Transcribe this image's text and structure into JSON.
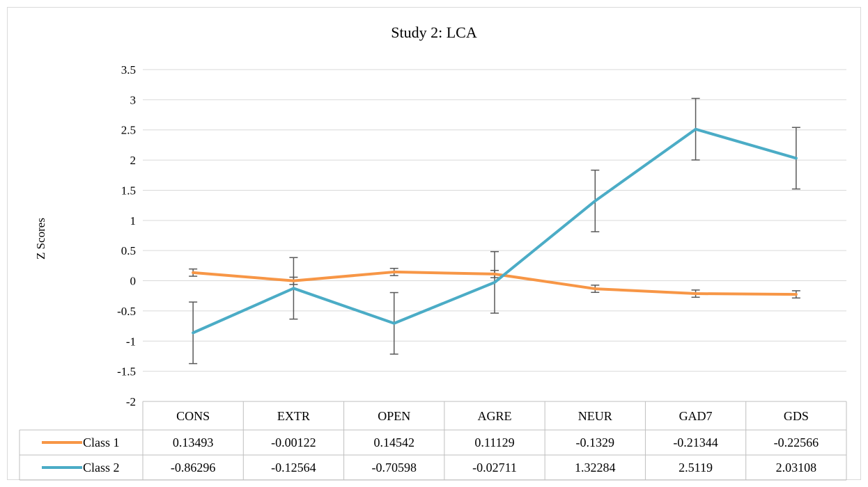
{
  "chart_data": {
    "type": "line",
    "title": "Study 2: LCA",
    "ylabel": "Z Scores",
    "xlabel": "",
    "categories": [
      "CONS",
      "EXTR",
      "OPEN",
      "AGRE",
      "NEUR",
      "GAD7",
      "GDS"
    ],
    "ylim": [
      -2,
      3.5
    ],
    "yticks": [
      "3.5",
      "3",
      "2.5",
      "2",
      "1.5",
      "1",
      "0.5",
      "0",
      "-0.5",
      "-1",
      "-1.5",
      "-2"
    ],
    "ytick_values": [
      3.5,
      3,
      2.5,
      2,
      1.5,
      1,
      0.5,
      0,
      -0.5,
      -1,
      -1.5,
      -2
    ],
    "grid": true,
    "legend": "data table",
    "series": [
      {
        "name": "Class 1",
        "color": "#F79646",
        "values": [
          0.13493,
          -0.00122,
          0.14542,
          0.11129,
          -0.1329,
          -0.21344,
          -0.22566
        ],
        "labels": [
          "0.13493",
          "-0.00122",
          "0.14542",
          "0.11129",
          "-0.1329",
          "-0.21344",
          "-0.22566"
        ],
        "error": 0.06
      },
      {
        "name": "Class 2",
        "color": "#4BACC6",
        "values": [
          -0.86296,
          -0.12564,
          -0.70598,
          -0.02711,
          1.32284,
          2.5119,
          2.03108
        ],
        "labels": [
          "-0.86296",
          "-0.12564",
          "-0.70598",
          "-0.02711",
          "1.32284",
          "2.5119",
          "2.03108"
        ],
        "error": 0.51
      }
    ]
  }
}
